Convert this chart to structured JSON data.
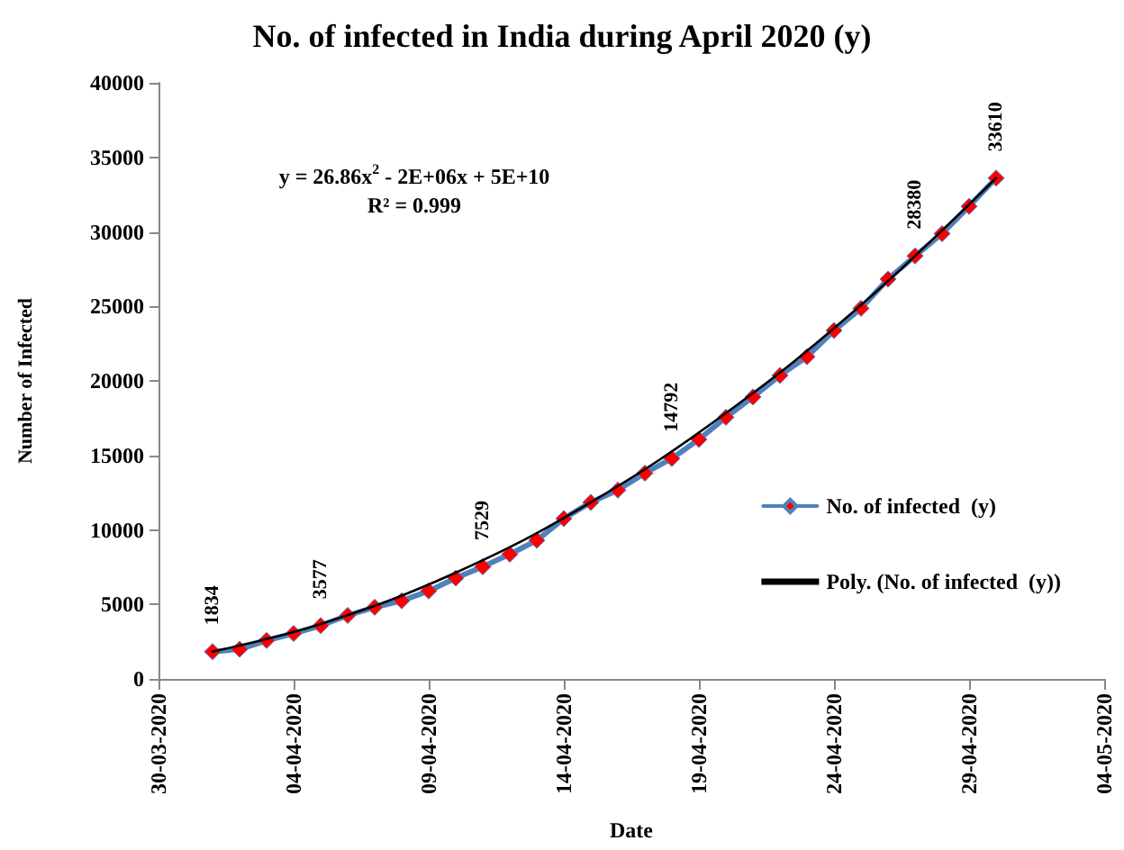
{
  "chart_data": {
    "type": "line",
    "title": "No. of infected in India during April 2020 (y)",
    "xlabel": "Date",
    "ylabel": "Number of Infected",
    "annotations": [
      "y = 26.86x$^{2}$ - 2E+06x + 5E+10",
      "R² = 0.999"
    ],
    "x": [
      "2020-04-01",
      "2020-04-02",
      "2020-04-03",
      "2020-04-04",
      "2020-04-05",
      "2020-04-06",
      "2020-04-07",
      "2020-04-08",
      "2020-04-09",
      "2020-04-10",
      "2020-04-11",
      "2020-04-12",
      "2020-04-13",
      "2020-04-14",
      "2020-04-15",
      "2020-04-16",
      "2020-04-17",
      "2020-04-18",
      "2020-04-19",
      "2020-04-20",
      "2020-04-21",
      "2020-04-22",
      "2020-04-23",
      "2020-04-24",
      "2020-04-25",
      "2020-04-26",
      "2020-04-27",
      "2020-04-28",
      "2020-04-29",
      "2020-04-30"
    ],
    "series": [
      {
        "name": "No. of infected  (y)",
        "color": "#4f81bd",
        "marker": "diamond",
        "values": [
          1834,
          1990,
          2580,
          3050,
          3577,
          4260,
          4810,
          5240,
          5900,
          6770,
          7529,
          8370,
          9300,
          10760,
          11850,
          12670,
          13810,
          14792,
          16070,
          17560,
          18920,
          20370,
          21620,
          23380,
          24870,
          26830,
          28380,
          29880,
          31710,
          33610
        ],
        "value_labels": [
          "1834",
          null,
          null,
          null,
          "3577",
          null,
          null,
          null,
          null,
          null,
          "7529",
          null,
          null,
          null,
          null,
          null,
          null,
          "14792",
          null,
          null,
          null,
          null,
          null,
          null,
          null,
          null,
          "28380",
          null,
          null,
          "33610"
        ]
      },
      {
        "name": "Poly. (No. of infected  (y))",
        "color": "#000000",
        "marker": "none",
        "x": [
          "2020-04-01",
          "2020-04-05",
          "2020-04-10",
          "2020-04-15",
          "2020-04-20",
          "2020-04-25",
          "2020-04-30"
        ],
        "values": [
          1834,
          3680,
          7130,
          11850,
          17840,
          25090,
          33610
        ]
      }
    ],
    "xlim": [
      "2020-03-30",
      "2020-05-04"
    ],
    "xticks": [
      {
        "value": "2020-03-30",
        "label": "30-03-2020"
      },
      {
        "value": "2020-04-04",
        "label": "04-04-2020"
      },
      {
        "value": "2020-04-09",
        "label": "09-04-2020"
      },
      {
        "value": "2020-04-14",
        "label": "14-04-2020"
      },
      {
        "value": "2020-04-19",
        "label": "19-04-2020"
      },
      {
        "value": "2020-04-24",
        "label": "24-04-2020"
      },
      {
        "value": "2020-04-29",
        "label": "29-04-2020"
      },
      {
        "value": "2020-05-04",
        "label": "04-05-2020"
      }
    ],
    "ylim": [
      0,
      40000
    ],
    "yticks": [
      0,
      5000,
      10000,
      15000,
      20000,
      25000,
      30000,
      35000,
      40000
    ],
    "grid": false,
    "legend": "right"
  }
}
